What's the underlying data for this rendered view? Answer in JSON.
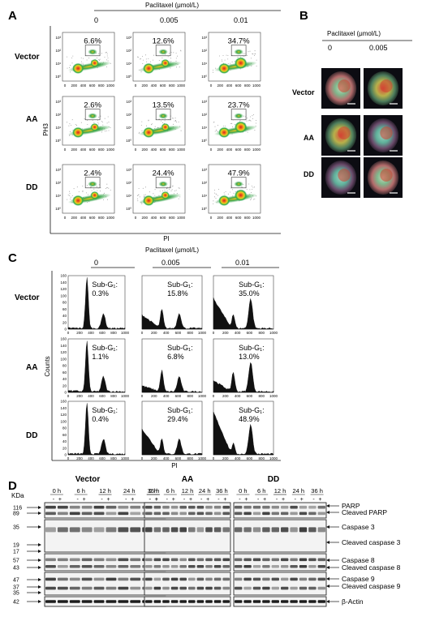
{
  "panels": {
    "A": "A",
    "B": "B",
    "C": "C",
    "D": "D"
  },
  "treatment_header": "Paclitaxel (μmol/L)",
  "doses": [
    "0",
    "0.005",
    "0.01"
  ],
  "rows": [
    "Vector",
    "AA",
    "DD"
  ],
  "panel_a": {
    "ylabel": "PH3",
    "xlabel": "PI",
    "xticks": [
      "0",
      "200",
      "400",
      "600",
      "800",
      "1000"
    ],
    "yticks": [
      "10⁰",
      "10¹",
      "10²",
      "10³"
    ],
    "percentages": [
      [
        "6.6%",
        "12.6%",
        "34.7%"
      ],
      [
        "2.6%",
        "13.5%",
        "23.7%"
      ],
      [
        "2.4%",
        "24.4%",
        "47.9%"
      ]
    ]
  },
  "panel_b": {
    "doses": [
      "0",
      "0.005"
    ],
    "rows": [
      "Vector",
      "AA",
      "DD"
    ]
  },
  "panel_c": {
    "ylabel": "Counts",
    "xlabel": "PI",
    "xticks": [
      "0",
      "200",
      "400",
      "600",
      "800",
      "1000"
    ],
    "yticks": [
      "0",
      "20",
      "40",
      "60",
      "80",
      "100",
      "120",
      "140",
      "160"
    ],
    "subg1_label": "Sub-G₁:",
    "values": [
      [
        "0.3%",
        "15.8%",
        "35.0%"
      ],
      [
        "1.1%",
        "6.8%",
        "13.0%"
      ],
      [
        "0.4%",
        "29.4%",
        "48.9%"
      ]
    ]
  },
  "panel_d": {
    "kda_label": "KDa",
    "groups": [
      "Vector",
      "AA",
      "DD"
    ],
    "timepoints": [
      "0 h",
      "6 h",
      "12 h",
      "24 h",
      "36 h"
    ],
    "treat_signs": [
      "-",
      "+"
    ],
    "mw_markers": [
      "116",
      "89",
      "35",
      "19",
      "17",
      "57",
      "43",
      "47",
      "37",
      "35",
      "42"
    ],
    "band_labels": [
      "PARP",
      "Cleaved PARP",
      "Caspase 3",
      "Cleaved caspase 3",
      "Caspase 8",
      "Cleaved caspase 8",
      "Caspase 9",
      "Cleaved caspase 9",
      "β-Actin"
    ]
  },
  "chart_data": [
    {
      "type": "scatter",
      "title": "Panel A",
      "xlabel": "PI",
      "ylabel": "PH3",
      "columns": [
        "0",
        "0.005",
        "0.01"
      ],
      "rows": [
        "Vector",
        "AA",
        "DD"
      ],
      "series": [
        {
          "name": "Vector",
          "values": [
            6.6,
            12.6,
            34.7
          ]
        },
        {
          "name": "AA",
          "values": [
            2.6,
            13.5,
            23.7
          ]
        },
        {
          "name": "DD",
          "values": [
            2.4,
            24.4,
            47.9
          ]
        }
      ]
    },
    {
      "type": "area",
      "title": "Panel C",
      "xlabel": "PI",
      "ylabel": "Counts",
      "columns": [
        "0",
        "0.005",
        "0.01"
      ],
      "rows": [
        "Vector",
        "AA",
        "DD"
      ],
      "series": [
        {
          "name": "Vector",
          "values": [
            0.3,
            15.8,
            35.0
          ]
        },
        {
          "name": "AA",
          "values": [
            1.1,
            6.8,
            13.0
          ]
        },
        {
          "name": "DD",
          "values": [
            0.4,
            29.4,
            48.9
          ]
        }
      ]
    }
  ]
}
